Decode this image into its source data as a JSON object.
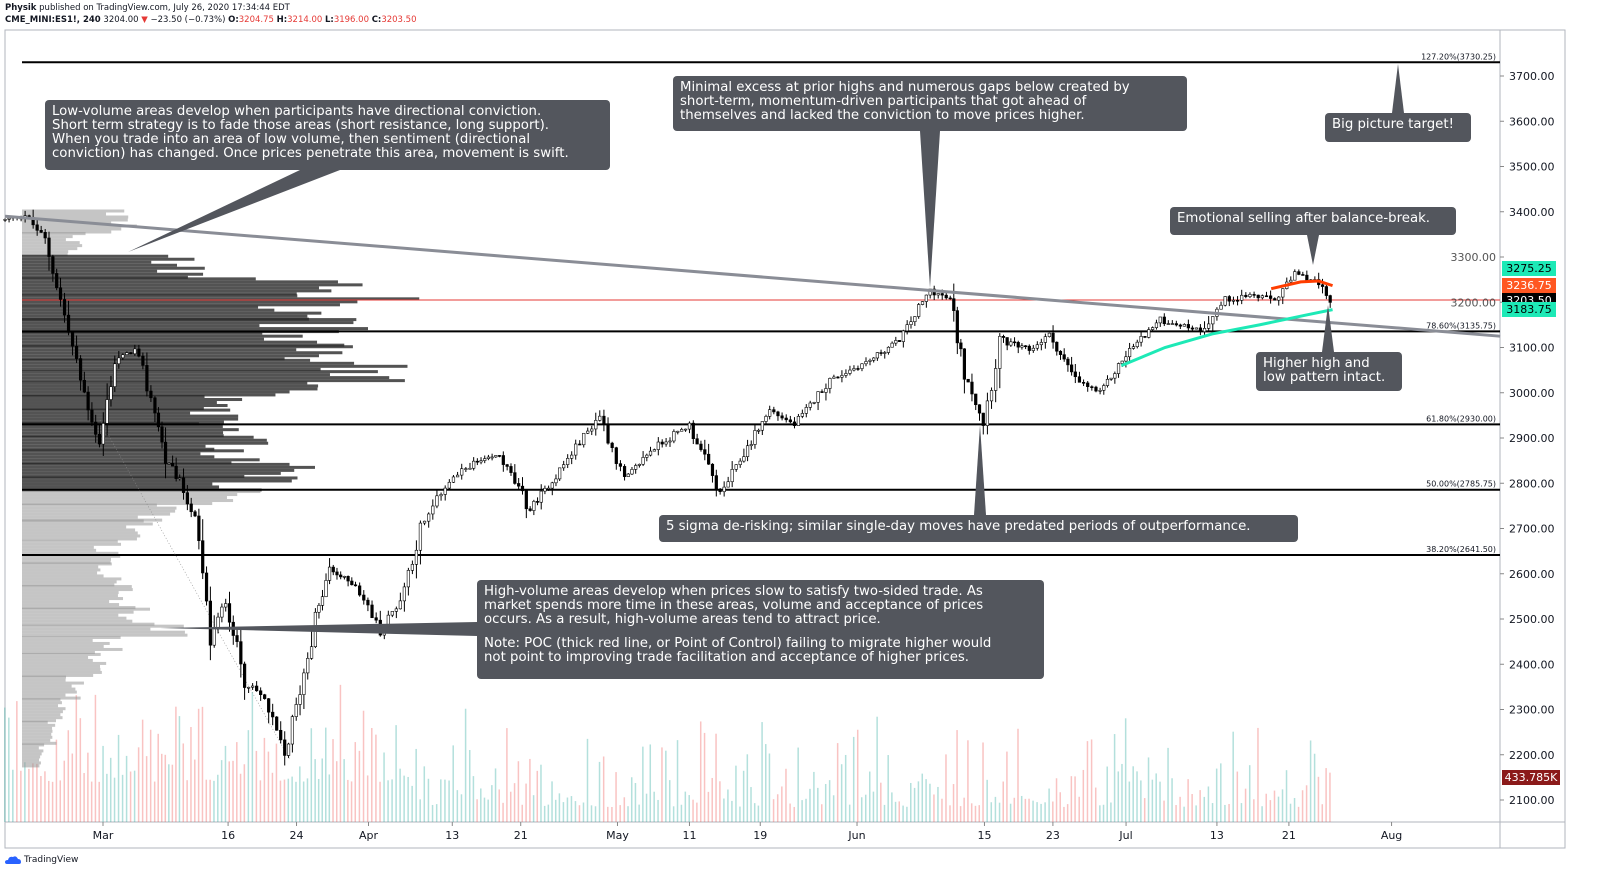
{
  "header": {
    "author": "Physik",
    "published": "published on TradingView.com, July 26, 2020 17:34:44 EDT",
    "symbol": "CME_MINI:ES1!, 240",
    "last": "3204.00",
    "change": "−23.50 (−0.73%)",
    "o_label": "O:",
    "o": "3204.75",
    "h_label": "H:",
    "h": "3214.00",
    "l_label": "L:",
    "l": "3196.00",
    "c_label": "C:",
    "c": "3203.50"
  },
  "price_tags": [
    {
      "text": "3275.25",
      "value": 3275.25,
      "bg": "#1de9b6",
      "fg": "#000000"
    },
    {
      "text": "3236.75",
      "value": 3236.75,
      "bg": "#ff5722",
      "fg": "#ffffff"
    },
    {
      "text": "3203.50",
      "value": 3203.5,
      "bg": "#000000",
      "fg": "#ffffff"
    },
    {
      "text": "3183.75",
      "value": 3183.75,
      "bg": "#1de9b6",
      "fg": "#000000"
    }
  ],
  "volume_tag": {
    "text": "433.785K",
    "bg": "#8b1a1a",
    "fg": "#ffffff"
  },
  "notes": [
    {
      "lines": [
        "Low-volume areas develop when participants have directional conviction.",
        "Short term strategy is to fade those areas (short resistance, long support).",
        "When you trade into an area of low volume, then sentiment (directional",
        "conviction) has changed. Once prices penetrate this area, movement is swift."
      ]
    },
    {
      "lines": [
        "Minimal excess at prior highs and numerous gaps below created by",
        "short-term, momentum-driven participants that got ahead of",
        "themselves and lacked the conviction to move prices higher."
      ]
    },
    {
      "lines": [
        "Big picture target!"
      ]
    },
    {
      "lines": [
        "Emotional selling after balance-break."
      ]
    },
    {
      "lines": [
        "Higher high and",
        "low pattern intact."
      ]
    },
    {
      "lines": [
        "5 sigma de-risking; similar single-day moves have predated periods of outperformance."
      ]
    },
    {
      "lines": [
        "High-volume areas develop when prices slow to satisfy two-sided trade. As",
        "market spends more time in these areas, volume and acceptance of prices",
        "occurs. As a result, high-volume areas tend to attract price."
      ],
      "lines2": [
        "Note: POC (thick red line, or Point of Control) failing to migrate higher would",
        "not point to improving trade facilitation and acceptance of higher prices."
      ]
    }
  ],
  "branding": "TradingView",
  "chart_data": {
    "type": "candlestick",
    "title": "CME_MINI:ES1!, 240",
    "x_unit": "trading-day index (0 = Mar 1)",
    "ylim": [
      2030,
      3800
    ],
    "y_ticks": [
      2100,
      2200,
      2300,
      2400,
      2500,
      2600,
      2700,
      2800,
      2900,
      3000,
      3100,
      3200,
      3300,
      3400,
      3500,
      3600,
      3700
    ],
    "x_ticks": [
      {
        "label": "Mar",
        "d": 0
      },
      {
        "label": "16",
        "d": 10.6
      },
      {
        "label": "24",
        "d": 16.4
      },
      {
        "label": "Apr",
        "d": 22.5
      },
      {
        "label": "13",
        "d": 29.6
      },
      {
        "label": "21",
        "d": 35.4
      },
      {
        "label": "May",
        "d": 43.6
      },
      {
        "label": "11",
        "d": 49.7
      },
      {
        "label": "19",
        "d": 55.7
      },
      {
        "label": "Jun",
        "d": 63.9
      },
      {
        "label": "15",
        "d": 74.7
      },
      {
        "label": "23",
        "d": 80.5
      },
      {
        "label": "Jul",
        "d": 86.7
      },
      {
        "label": "13",
        "d": 94.4
      },
      {
        "label": "21",
        "d": 100.5
      },
      {
        "label": "Aug",
        "d": 109.2
      }
    ],
    "price_path": [
      [
        -8.3,
        3382
      ],
      [
        -6.6,
        3393
      ],
      [
        -4.9,
        3338
      ],
      [
        -3.6,
        3205
      ],
      [
        -1.9,
        3028
      ],
      [
        -0.3,
        2884
      ],
      [
        1.0,
        3072
      ],
      [
        2.7,
        3094
      ],
      [
        4.4,
        2962
      ],
      [
        5.3,
        2851
      ],
      [
        6.5,
        2807
      ],
      [
        7.8,
        2719
      ],
      [
        9.1,
        2454
      ],
      [
        10.4,
        2542
      ],
      [
        12.0,
        2365
      ],
      [
        13.7,
        2321
      ],
      [
        15.4,
        2195
      ],
      [
        16.7,
        2343
      ],
      [
        18.0,
        2498
      ],
      [
        19.2,
        2608
      ],
      [
        21.4,
        2575
      ],
      [
        23.5,
        2476
      ],
      [
        25.2,
        2542
      ],
      [
        26.9,
        2697
      ],
      [
        29.0,
        2796
      ],
      [
        31.1,
        2840
      ],
      [
        33.6,
        2862
      ],
      [
        36.2,
        2741
      ],
      [
        38.7,
        2829
      ],
      [
        42.1,
        2951
      ],
      [
        44.2,
        2807
      ],
      [
        46.4,
        2873
      ],
      [
        49.7,
        2929
      ],
      [
        52.3,
        2775
      ],
      [
        54.0,
        2851
      ],
      [
        56.5,
        2962
      ],
      [
        58.6,
        2929
      ],
      [
        61.6,
        3028
      ],
      [
        65.0,
        3072
      ],
      [
        67.5,
        3117
      ],
      [
        70.1,
        3227
      ],
      [
        71.8,
        3205
      ],
      [
        73.0,
        3050
      ],
      [
        74.6,
        2935
      ],
      [
        76.0,
        3117
      ],
      [
        78.5,
        3094
      ],
      [
        80.2,
        3128
      ],
      [
        82.4,
        3028
      ],
      [
        84.5,
        3000
      ],
      [
        87.0,
        3094
      ],
      [
        89.6,
        3161
      ],
      [
        93.0,
        3139
      ],
      [
        95.1,
        3205
      ],
      [
        97.2,
        3216
      ],
      [
        99.3,
        3205
      ],
      [
        101.0,
        3260
      ],
      [
        102.7,
        3249
      ],
      [
        104.0,
        3203.5
      ]
    ],
    "fib_levels": [
      {
        "label": "127.20%(3730.25)",
        "price": 3730.25
      },
      {
        "label": "78.60%(3135.75)",
        "price": 3135.75
      },
      {
        "label": "61.80%(2930.00)",
        "price": 2930.0
      },
      {
        "label": "50.00%(2785.75)",
        "price": 2785.75
      },
      {
        "label": "38.20%(2641.50)",
        "price": 2641.5
      }
    ],
    "poc_price": 3205,
    "value_area_low": 2785,
    "trendline": [
      [
        -8.3,
        3390
      ],
      [
        118.4,
        3125
      ]
    ],
    "ma_red": [
      [
        99.0,
        3230
      ],
      [
        101.5,
        3245
      ],
      [
        103.0,
        3247
      ],
      [
        104.2,
        3236.75
      ]
    ],
    "ma_green": [
      [
        86.3,
        3060
      ],
      [
        90,
        3100
      ],
      [
        94,
        3130
      ],
      [
        98,
        3150
      ],
      [
        102,
        3172
      ],
      [
        104.2,
        3183.75
      ]
    ],
    "volume_profile": [
      [
        3380,
        29
      ],
      [
        3330,
        16
      ],
      [
        3280,
        47
      ],
      [
        3230,
        86
      ],
      [
        3205,
        100
      ],
      [
        3180,
        83
      ],
      [
        3150,
        86
      ],
      [
        3120,
        88
      ],
      [
        3090,
        94
      ],
      [
        3060,
        99
      ],
      [
        3040,
        100
      ],
      [
        3010,
        86
      ],
      [
        2980,
        65
      ],
      [
        2950,
        62
      ],
      [
        2920,
        65
      ],
      [
        2890,
        62
      ],
      [
        2860,
        60
      ],
      [
        2830,
        73
      ],
      [
        2800,
        70
      ],
      [
        2770,
        62
      ],
      [
        2740,
        39
      ],
      [
        2700,
        34
      ],
      [
        2650,
        26
      ],
      [
        2600,
        26
      ],
      [
        2550,
        29
      ],
      [
        2500,
        34
      ],
      [
        2475,
        42
      ],
      [
        2450,
        26
      ],
      [
        2400,
        21
      ],
      [
        2350,
        16
      ],
      [
        2300,
        12
      ],
      [
        2250,
        9
      ],
      [
        2200,
        6
      ]
    ]
  }
}
